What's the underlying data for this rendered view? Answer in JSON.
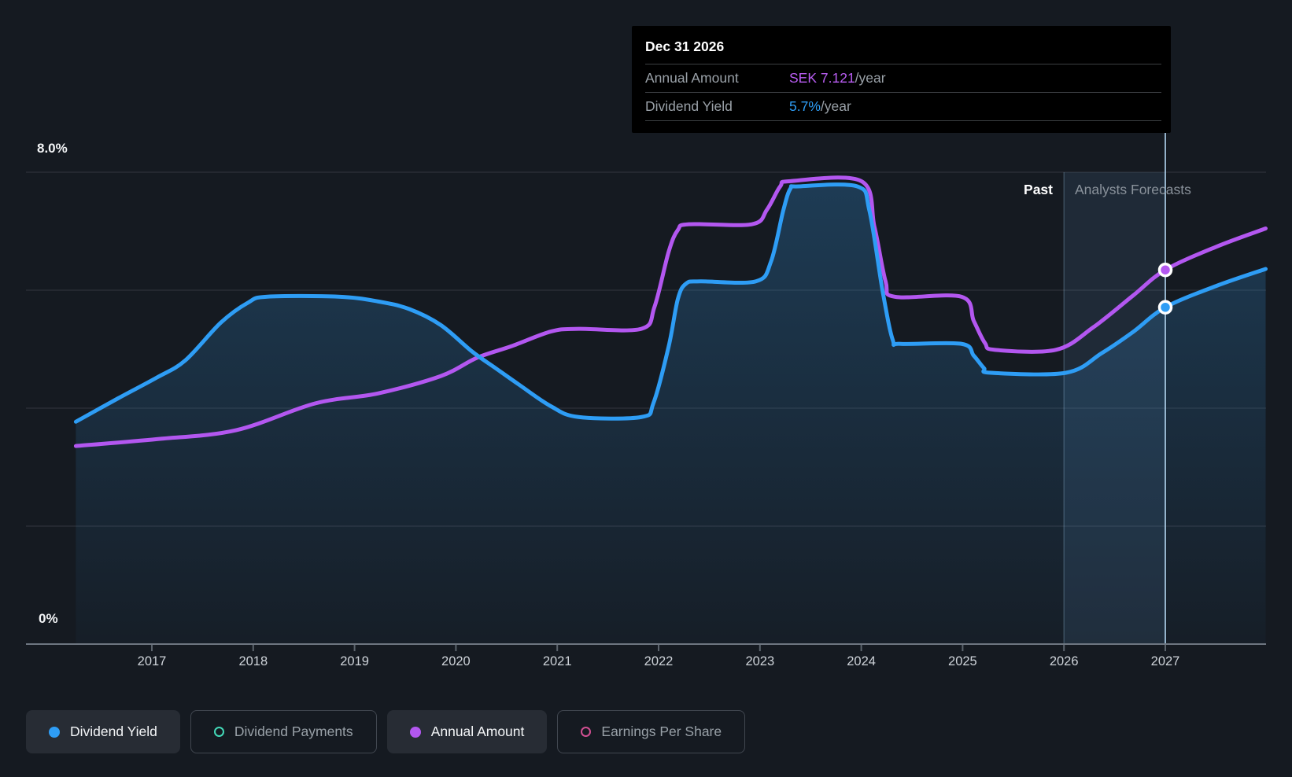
{
  "header_labels": {
    "past": "Past",
    "forecasts": "Analysts Forecasts"
  },
  "y_axis": {
    "top_label": "8.0%",
    "bottom_label": "0%"
  },
  "tooltip": {
    "title": "Dec 31 2026",
    "rows": [
      {
        "label": "Annual Amount",
        "value": "SEK 7.121",
        "suffix": "/year",
        "color": "#b95df2"
      },
      {
        "label": "Dividend Yield",
        "value": "5.7%",
        "suffix": "/year",
        "color": "#2e9df5"
      }
    ]
  },
  "legend": {
    "items": [
      {
        "label": "Dividend Yield",
        "color": "#2e9df5",
        "marker": "filled",
        "active": true
      },
      {
        "label": "Dividend Payments",
        "color": "#43d9b8",
        "marker": "ring",
        "active": false
      },
      {
        "label": "Annual Amount",
        "color": "#b357f0",
        "marker": "filled",
        "active": true
      },
      {
        "label": "Earnings Per Share",
        "color": "#d14f92",
        "marker": "ring",
        "active": false
      }
    ]
  },
  "chart_data": {
    "type": "line",
    "x_ticks": [
      2017,
      2018,
      2019,
      2020,
      2021,
      2022,
      2023,
      2024,
      2025,
      2026,
      2027
    ],
    "x_range": [
      2016.25,
      2027.99
    ],
    "y_left": {
      "unit": "%",
      "min": 0,
      "max": 8,
      "gridline_step": 2
    },
    "divider_year": 2026,
    "hover_year": 2027,
    "grid": true,
    "legend_position": "bottom",
    "series": [
      {
        "name": "Dividend Yield",
        "unit": "%",
        "color": "#2e9df5",
        "area": true,
        "y_range": [
          0,
          8
        ],
        "points": [
          [
            2016.25,
            3.77
          ],
          [
            2016.67,
            4.17
          ],
          [
            2017.05,
            4.52
          ],
          [
            2017.33,
            4.81
          ],
          [
            2017.68,
            5.45
          ],
          [
            2017.95,
            5.79
          ],
          [
            2018.14,
            5.89
          ],
          [
            2018.84,
            5.89
          ],
          [
            2019.23,
            5.81
          ],
          [
            2019.54,
            5.68
          ],
          [
            2019.85,
            5.41
          ],
          [
            2020.16,
            4.96
          ],
          [
            2020.39,
            4.68
          ],
          [
            2020.63,
            4.39
          ],
          [
            2020.94,
            4.03
          ],
          [
            2021.21,
            3.85
          ],
          [
            2021.83,
            3.85
          ],
          [
            2021.95,
            4.09
          ],
          [
            2022.1,
            5.05
          ],
          [
            2022.19,
            5.85
          ],
          [
            2022.27,
            6.11
          ],
          [
            2022.41,
            6.15
          ],
          [
            2022.96,
            6.15
          ],
          [
            2023.11,
            6.49
          ],
          [
            2023.23,
            7.35
          ],
          [
            2023.3,
            7.72
          ],
          [
            2023.38,
            7.76
          ],
          [
            2023.96,
            7.76
          ],
          [
            2024.08,
            7.35
          ],
          [
            2024.21,
            5.99
          ],
          [
            2024.31,
            5.16
          ],
          [
            2024.39,
            5.09
          ],
          [
            2024.99,
            5.09
          ],
          [
            2025.11,
            4.89
          ],
          [
            2025.21,
            4.68
          ],
          [
            2025.28,
            4.6
          ],
          [
            2026.02,
            4.6
          ],
          [
            2026.37,
            4.93
          ],
          [
            2026.68,
            5.29
          ],
          [
            2027.0,
            5.71
          ],
          [
            2027.5,
            6.07
          ],
          [
            2027.99,
            6.36
          ]
        ]
      },
      {
        "name": "Annual Amount",
        "unit": "SEK",
        "color": "#b357f0",
        "area": false,
        "y_range": [
          0,
          8.98
        ],
        "points": [
          [
            2016.25,
            3.77
          ],
          [
            2017.05,
            3.9
          ],
          [
            2017.83,
            4.07
          ],
          [
            2018.61,
            4.58
          ],
          [
            2019.23,
            4.77
          ],
          [
            2019.85,
            5.1
          ],
          [
            2020.21,
            5.45
          ],
          [
            2020.55,
            5.67
          ],
          [
            2020.94,
            5.95
          ],
          [
            2021.21,
            6.0
          ],
          [
            2021.83,
            6.0
          ],
          [
            2021.96,
            6.42
          ],
          [
            2022.1,
            7.47
          ],
          [
            2022.19,
            7.88
          ],
          [
            2022.3,
            7.99
          ],
          [
            2022.92,
            7.99
          ],
          [
            2023.07,
            8.27
          ],
          [
            2023.2,
            8.71
          ],
          [
            2023.3,
            8.81
          ],
          [
            2024.0,
            8.81
          ],
          [
            2024.13,
            7.94
          ],
          [
            2024.24,
            6.9
          ],
          [
            2024.33,
            6.61
          ],
          [
            2024.99,
            6.61
          ],
          [
            2025.11,
            6.15
          ],
          [
            2025.22,
            5.73
          ],
          [
            2025.32,
            5.6
          ],
          [
            2025.92,
            5.6
          ],
          [
            2026.29,
            6.03
          ],
          [
            2026.68,
            6.63
          ],
          [
            2027.0,
            7.121
          ],
          [
            2027.5,
            7.56
          ],
          [
            2027.99,
            7.91
          ]
        ]
      }
    ],
    "markers": [
      {
        "series_index": 0,
        "x": 2027,
        "y": 5.71
      },
      {
        "series_index": 1,
        "x": 2027,
        "y": 7.121
      }
    ]
  }
}
